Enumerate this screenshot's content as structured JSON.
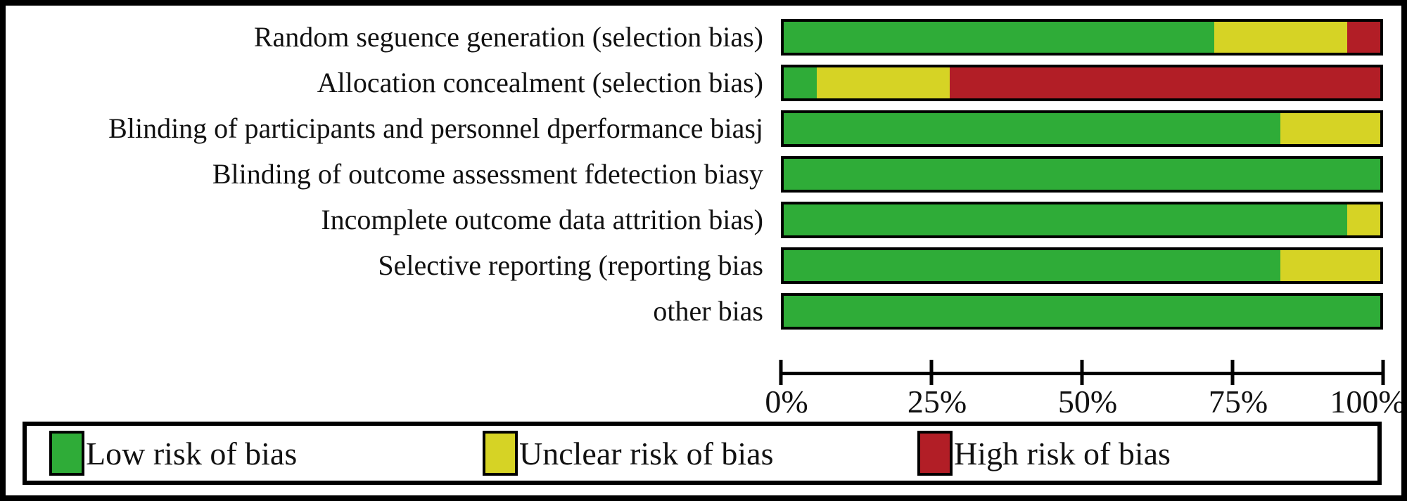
{
  "chart_data": {
    "type": "bar",
    "orientation": "horizontal-stacked",
    "title": "",
    "xlabel": "",
    "ylabel": "",
    "xlim": [
      0,
      100
    ],
    "x_tick_labels": [
      "0%",
      "25%",
      "50%",
      "75%",
      "100%"
    ],
    "grid": false,
    "legend_position": "bottom",
    "units": "percent of studies",
    "categories": [
      "Random seguence generation (selection bias)",
      "Allocation concealment (selection bias)",
      "Blinding of participants and personnel dperformance biasj",
      "Blinding of outcome assessment fdetection biasy",
      "Incomplete outcome data attrition bias)",
      "Selective reporting (reporting bias",
      "other bias"
    ],
    "series": [
      {
        "name": "Low risk of bias",
        "color": "#2FAC38",
        "values": [
          72.2,
          5.6,
          83.3,
          100,
          94.4,
          83.3,
          100
        ]
      },
      {
        "name": "Unclear risk of bias",
        "color": "#D6D325",
        "values": [
          22.2,
          22.2,
          16.7,
          0,
          5.6,
          16.7,
          0
        ]
      },
      {
        "name": "High risk of bias",
        "color": "#B21E26",
        "values": [
          5.6,
          72.2,
          0,
          0,
          0,
          0,
          0
        ]
      }
    ]
  },
  "legend": {
    "items": [
      {
        "label": "Low risk of bias",
        "color": "#2FAC38"
      },
      {
        "label": "Unclear risk of bias",
        "color": "#D6D325"
      },
      {
        "label": "High risk of bias",
        "color": "#B21E26"
      }
    ]
  },
  "axis": {
    "tick_labels": [
      "0%",
      "25%",
      "50%",
      "75%",
      "100%"
    ]
  },
  "colors": {
    "low_risk": "#2FAC38",
    "unclear_risk": "#D6D325",
    "high_risk": "#B21E26",
    "border": "#000000",
    "background": "#FFFFFF"
  }
}
